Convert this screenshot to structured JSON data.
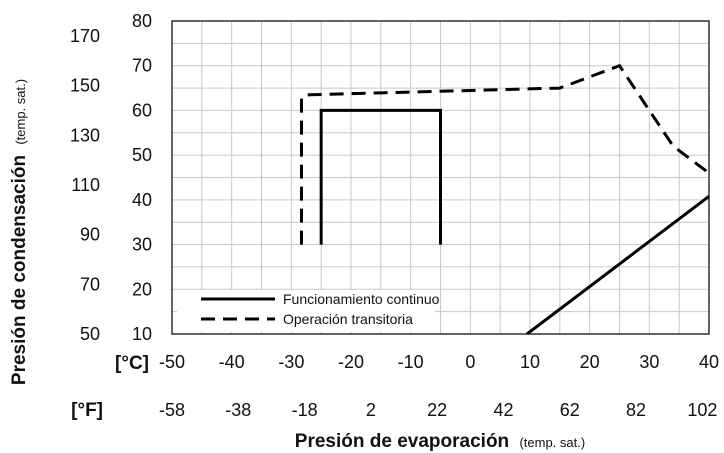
{
  "chart_data": {
    "type": "line",
    "xlabel": "Presión de evaporación",
    "xlabel_note": "(temp. sat.)",
    "ylabel": "Presión de condensación",
    "ylabel_note": "(temp. sat.)",
    "x_unit_c": "[°C]",
    "x_unit_f": "[°F]",
    "xlim": [
      -50,
      40
    ],
    "ylim": [
      10,
      80
    ],
    "x_ticks_c": [
      "-50",
      "-40",
      "-30",
      "-20",
      "-10",
      "0",
      "10",
      "20",
      "30",
      "40"
    ],
    "x_ticks_f": [
      "-58",
      "-38",
      "-18",
      "2",
      "22",
      "42",
      "62",
      "82",
      "102"
    ],
    "y_ticks_c": [
      "10",
      "20",
      "30",
      "40",
      "50",
      "60",
      "70",
      "80"
    ],
    "y_ticks_f": [
      "50",
      "70",
      "90",
      "110",
      "130",
      "150",
      "170"
    ],
    "grid": true,
    "series": [
      {
        "name": "Funcionamiento continuo",
        "style": "solid",
        "color": "#000000",
        "x": [
          -25,
          -25,
          -5,
          -5
        ],
        "y": [
          30,
          60,
          60,
          30
        ]
      },
      {
        "name": "Operación transitoria",
        "style": "dashed",
        "color": "#000000",
        "x": [
          -28.3,
          -28.3,
          -27,
          15,
          25,
          34,
          40
        ],
        "y": [
          30,
          63,
          63.5,
          65,
          70,
          52,
          46
        ]
      },
      {
        "name": "",
        "style": "solid",
        "color": "#000000",
        "x": [
          9.5,
          40
        ],
        "y": [
          10,
          40.8
        ]
      }
    ],
    "legend": {
      "position": "bottom-left",
      "entries": [
        "Funcionamiento continuo",
        "Operación transitoria"
      ]
    }
  }
}
